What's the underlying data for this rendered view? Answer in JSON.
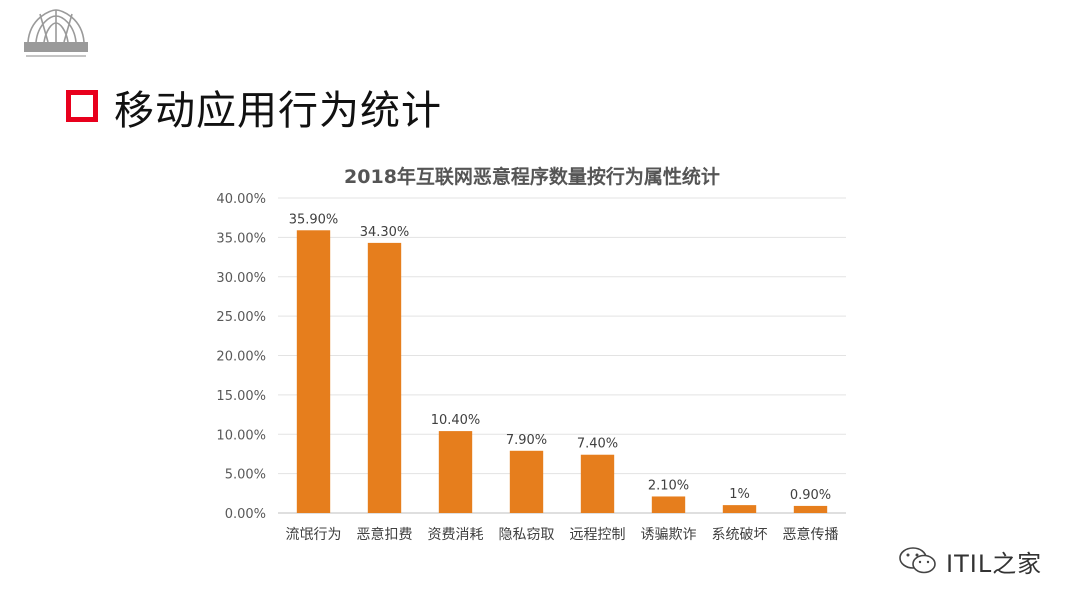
{
  "slide": {
    "title": "移动应用行为统计",
    "logo_icon": "arch-logo-icon",
    "accent_color": "#e8001d"
  },
  "watermark": {
    "text": "ITIL之家",
    "icon": "wechat-icon"
  },
  "chart_data": {
    "type": "bar",
    "title": "2018年互联网恶意程序数量按行为属性统计",
    "xlabel": "",
    "ylabel": "",
    "categories": [
      "流氓行为",
      "恶意扣费",
      "资费消耗",
      "隐私窃取",
      "远程控制",
      "诱骗欺诈",
      "系统破坏",
      "恶意传播"
    ],
    "series": [
      {
        "values": [
          35.9,
          34.3,
          10.4,
          7.9,
          7.4,
          2.1,
          1,
          0.9
        ],
        "data_labels": [
          "35.90%",
          "34.30%",
          "10.40%",
          "7.90%",
          "7.40%",
          "2.10%",
          "1%",
          "0.90%"
        ],
        "color": "#e67e1d"
      }
    ],
    "ylim": [
      0,
      40
    ],
    "y_ticks": [
      0,
      5,
      10,
      15,
      20,
      25,
      30,
      35,
      40
    ],
    "y_tick_labels": [
      "0.00%",
      "5.00%",
      "10.00%",
      "15.00%",
      "20.00%",
      "25.00%",
      "30.00%",
      "35.00%",
      "40.00%"
    ],
    "grid": true,
    "legend": "none"
  }
}
